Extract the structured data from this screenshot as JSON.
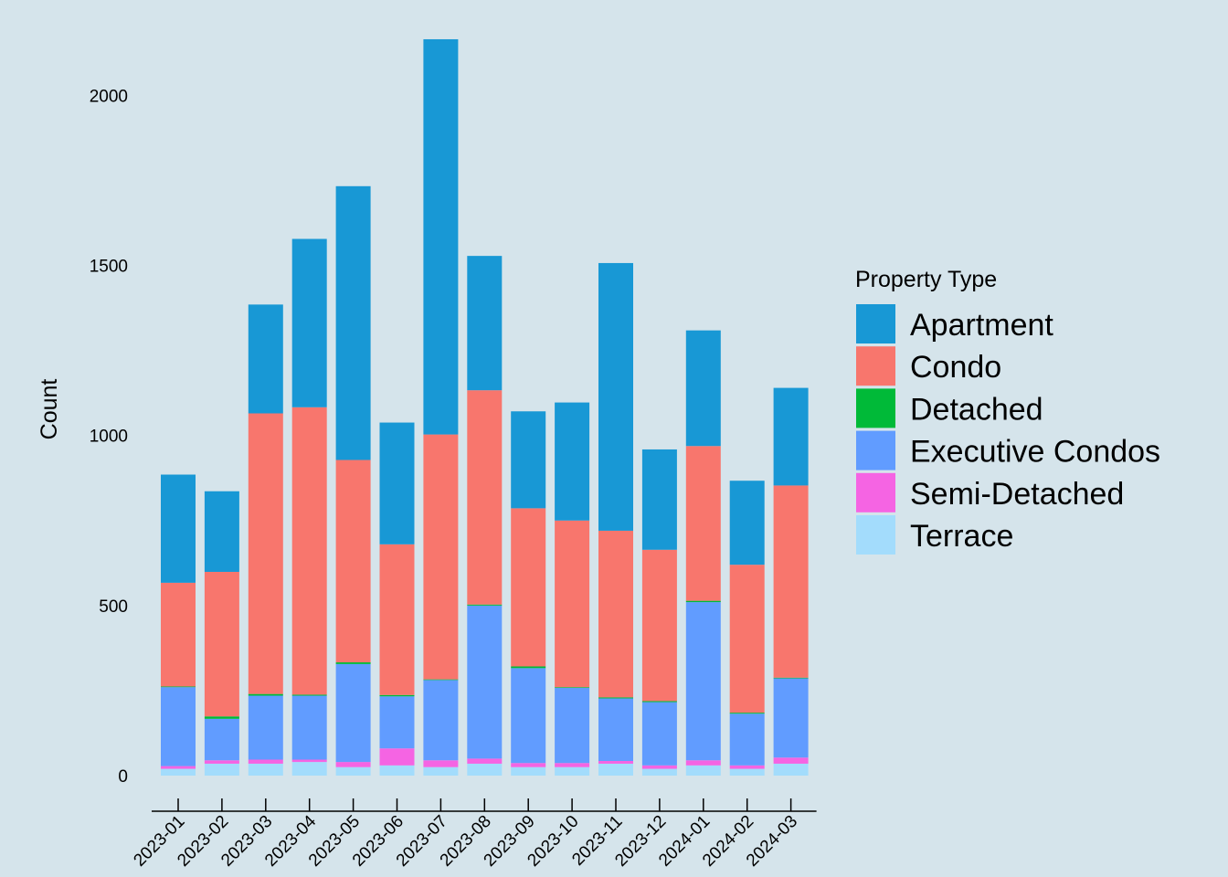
{
  "chart_data": {
    "type": "bar",
    "stacked": true,
    "title": "",
    "xlabel": "",
    "ylabel": "Count",
    "ylim": [
      0,
      2200
    ],
    "yticks": [
      0,
      500,
      1000,
      1500,
      2000
    ],
    "grid": false,
    "legend_position": "right",
    "legend_title": "Property Type",
    "categories": [
      "2023-01",
      "2023-02",
      "2023-03",
      "2023-04",
      "2023-05",
      "2023-06",
      "2023-07",
      "2023-08",
      "2023-09",
      "2023-10",
      "2023-11",
      "2023-12",
      "2024-01",
      "2024-02",
      "2024-03"
    ],
    "series": [
      {
        "name": "Terrace",
        "color": "#a3dcfc",
        "values": [
          20,
          35,
          35,
          40,
          25,
          30,
          25,
          35,
          25,
          25,
          35,
          20,
          30,
          20,
          35
        ]
      },
      {
        "name": "Semi-Detached",
        "color": "#f564e3",
        "values": [
          8,
          10,
          12,
          7,
          15,
          50,
          20,
          15,
          12,
          12,
          8,
          10,
          15,
          10,
          18
        ]
      },
      {
        "name": "Executive Condos",
        "color": "#619cff",
        "values": [
          232,
          122,
          188,
          188,
          288,
          153,
          236,
          450,
          279,
          221,
          184,
          186,
          465,
          152,
          233
        ]
      },
      {
        "name": "Detached",
        "color": "#00ba38",
        "values": [
          2,
          7,
          5,
          3,
          5,
          4,
          2,
          3,
          5,
          2,
          3,
          3,
          4,
          3,
          2
        ]
      },
      {
        "name": "Condo",
        "color": "#f8766d",
        "values": [
          305,
          425,
          825,
          845,
          595,
          443,
          720,
          630,
          465,
          490,
          490,
          445,
          455,
          435,
          565
        ]
      },
      {
        "name": "Apartment",
        "color": "#1898d5",
        "values": [
          318,
          237,
          320,
          495,
          805,
          358,
          1162,
          395,
          285,
          347,
          787,
          295,
          340,
          247,
          287
        ]
      }
    ],
    "legend_order": [
      "Apartment",
      "Condo",
      "Detached",
      "Executive Condos",
      "Semi-Detached",
      "Terrace"
    ]
  }
}
